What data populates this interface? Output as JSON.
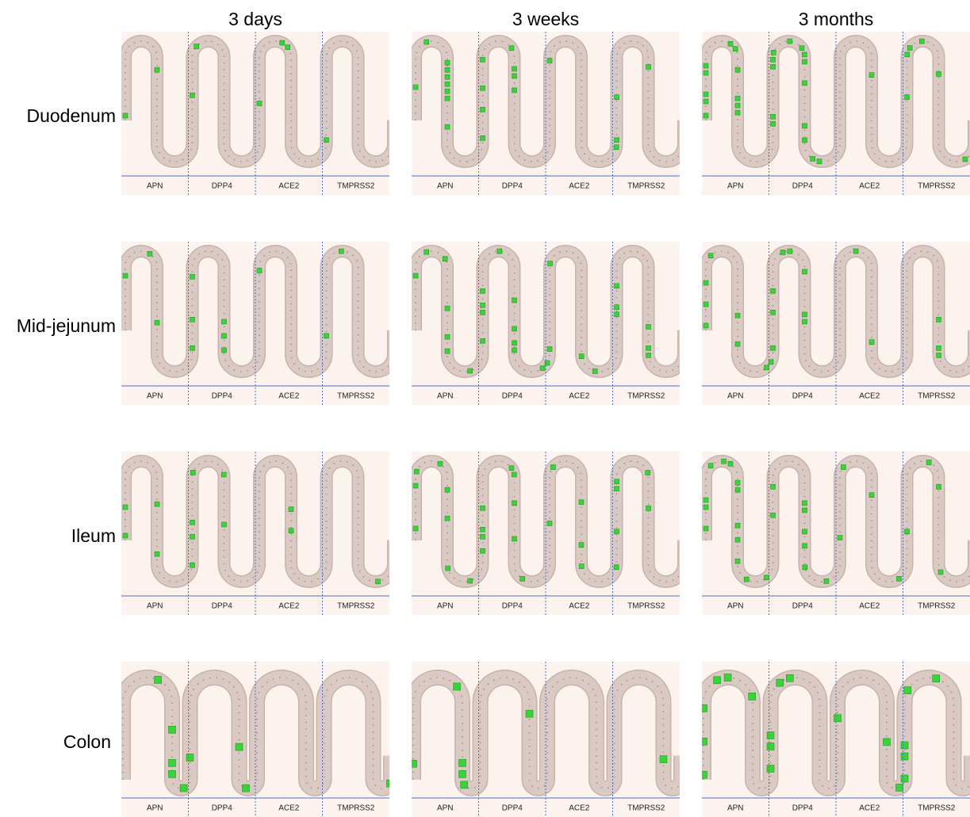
{
  "column_titles": [
    "3 days",
    "3 weeks",
    "3 months"
  ],
  "row_labels": [
    "Duodenum",
    "Mid-jejunum",
    "Ileum",
    "Colon"
  ],
  "panel_labels": [
    "APN",
    "DPP4",
    "ACE2",
    "TMPRSS2"
  ]
}
